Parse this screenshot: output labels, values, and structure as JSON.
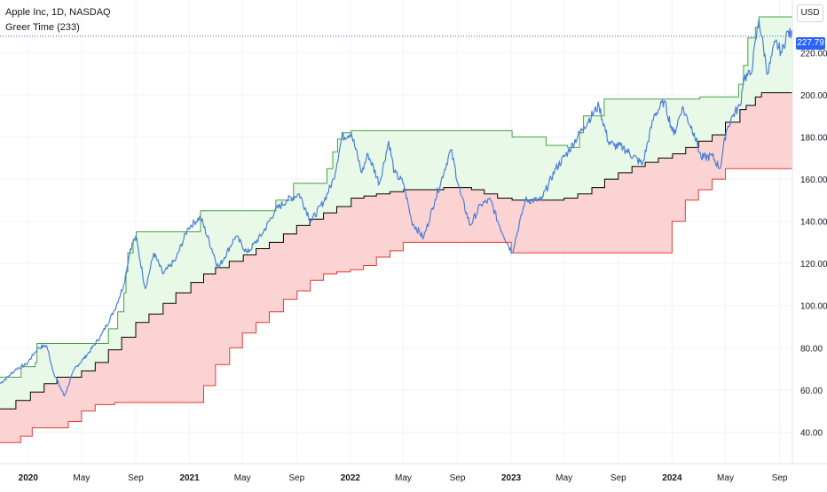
{
  "header": {
    "symbol_line": "Apple Inc, 1D, NASDAQ",
    "indicator_line": "Greer Time (233)",
    "currency": "USD",
    "last_price": "227.79"
  },
  "colors": {
    "price": "#4a7fd9",
    "upper_band": "#43a047",
    "lower_band": "#e53935",
    "mid_line": "#000000",
    "upper_fill": "#e9f9e7",
    "lower_fill": "#fcd3d3",
    "last_price_bg": "#2962ff"
  },
  "chart_data": {
    "type": "line",
    "title": "Apple Inc, 1D, NASDAQ",
    "indicator": "Greer Time (233)",
    "xlabel": "",
    "ylabel": "",
    "ylim": [
      25,
      245
    ],
    "xlim": [
      "2019-10-29",
      "2024-09-30"
    ],
    "y_ticks": [
      "40.00",
      "60.00",
      "80.00",
      "100.00",
      "120.00",
      "140.00",
      "160.00",
      "180.00",
      "200.00",
      "220.00"
    ],
    "x_ticks": [
      {
        "date": "2020-01-01",
        "label": "2020",
        "bold": true
      },
      {
        "date": "2020-05-01",
        "label": "May",
        "bold": false
      },
      {
        "date": "2020-09-01",
        "label": "Sep",
        "bold": false
      },
      {
        "date": "2021-01-01",
        "label": "2021",
        "bold": true
      },
      {
        "date": "2021-05-01",
        "label": "May",
        "bold": false
      },
      {
        "date": "2021-09-01",
        "label": "Sep",
        "bold": false
      },
      {
        "date": "2022-01-01",
        "label": "2022",
        "bold": true
      },
      {
        "date": "2022-05-01",
        "label": "May",
        "bold": false
      },
      {
        "date": "2022-09-01",
        "label": "Sep",
        "bold": false
      },
      {
        "date": "2023-01-01",
        "label": "2023",
        "bold": true
      },
      {
        "date": "2023-05-01",
        "label": "May",
        "bold": false
      },
      {
        "date": "2023-09-01",
        "label": "Sep",
        "bold": false
      },
      {
        "date": "2024-01-01",
        "label": "2024",
        "bold": true
      },
      {
        "date": "2024-05-01",
        "label": "May",
        "bold": false
      },
      {
        "date": "2024-09-01",
        "label": "Sep",
        "bold": false
      }
    ],
    "last_price": 227.79,
    "grid": true,
    "series": [
      {
        "role": "price",
        "x": [
          "2019-10-29",
          "2019-11-15",
          "2019-12-05",
          "2019-12-27",
          "2020-01-24",
          "2020-02-12",
          "2020-02-28",
          "2020-03-23",
          "2020-04-15",
          "2020-05-15",
          "2020-06-15",
          "2020-07-15",
          "2020-08-05",
          "2020-08-20",
          "2020-09-01",
          "2020-09-23",
          "2020-10-12",
          "2020-11-02",
          "2020-12-01",
          "2020-12-29",
          "2021-01-26",
          "2021-03-08",
          "2021-04-16",
          "2021-05-12",
          "2021-06-15",
          "2021-07-14",
          "2021-08-10",
          "2021-09-07",
          "2021-10-04",
          "2021-11-03",
          "2021-11-24",
          "2021-12-13",
          "2022-01-03",
          "2022-01-27",
          "2022-02-10",
          "2022-03-08",
          "2022-03-29",
          "2022-04-11",
          "2022-05-02",
          "2022-05-20",
          "2022-06-16",
          "2022-07-12",
          "2022-08-17",
          "2022-09-08",
          "2022-09-30",
          "2022-10-24",
          "2022-11-15",
          "2022-12-05",
          "2023-01-03",
          "2023-02-02",
          "2023-03-10",
          "2023-04-12",
          "2023-05-10",
          "2023-06-15",
          "2023-07-19",
          "2023-08-09",
          "2023-08-22",
          "2023-09-12",
          "2023-10-26",
          "2023-11-21",
          "2023-12-14",
          "2024-01-05",
          "2024-01-24",
          "2024-02-20",
          "2024-03-07",
          "2024-04-01",
          "2024-04-19",
          "2024-05-03",
          "2024-05-17",
          "2024-06-04",
          "2024-06-11",
          "2024-06-28",
          "2024-07-16",
          "2024-08-05",
          "2024-08-22",
          "2024-09-06",
          "2024-09-19",
          "2024-09-30"
        ],
        "values": [
          63,
          66,
          70,
          72,
          80,
          81,
          68,
          57,
          70,
          77,
          86,
          98,
          110,
          127,
          133,
          108,
          125,
          115,
          122,
          137,
          142,
          118,
          133,
          125,
          134,
          145,
          150,
          153,
          140,
          150,
          160,
          180,
          182,
          163,
          172,
          158,
          178,
          163,
          158,
          140,
          132,
          150,
          174,
          153,
          138,
          148,
          150,
          138,
          125,
          150,
          150,
          165,
          173,
          185,
          195,
          178,
          176,
          175,
          167,
          190,
          197,
          181,
          194,
          182,
          170,
          171,
          165,
          183,
          190,
          195,
          208,
          210,
          236,
          210,
          225,
          220,
          230,
          227.79
        ]
      },
      {
        "role": "upper_band",
        "x": [
          "2019-10-29",
          "2019-12-16",
          "2020-01-17",
          "2020-01-21",
          "2020-06-09",
          "2020-07-01",
          "2020-07-22",
          "2020-08-05",
          "2020-08-10",
          "2020-08-14",
          "2020-08-26",
          "2020-09-02",
          "2021-01-26",
          "2021-07-16",
          "2021-08-25",
          "2021-11-09",
          "2021-11-22",
          "2021-12-03",
          "2021-12-13",
          "2022-01-03",
          "2023-01-03",
          "2023-03-21",
          "2023-05-09",
          "2023-06-05",
          "2023-06-14",
          "2023-07-31",
          "2024-03-04",
          "2024-05-31",
          "2024-06-11",
          "2024-06-21",
          "2024-07-08",
          "2024-07-16",
          "2024-09-30"
        ],
        "values": [
          66,
          71,
          73,
          82,
          82,
          89,
          97,
          106,
          116,
          125,
          131,
          135,
          145,
          150,
          158,
          165,
          173,
          179,
          182,
          183,
          180,
          176,
          175,
          182,
          190,
          198,
          199,
          205,
          214,
          227,
          232,
          237,
          237
        ]
      },
      {
        "role": "mid_line",
        "x": [
          "2019-10-29",
          "2019-12-04",
          "2020-01-06",
          "2020-02-06",
          "2020-03-06",
          "2020-05-01",
          "2020-06-01",
          "2020-07-01",
          "2020-07-31",
          "2020-09-01",
          "2020-10-01",
          "2020-11-02",
          "2020-12-01",
          "2021-01-04",
          "2021-02-02",
          "2021-03-01",
          "2021-04-01",
          "2021-05-03",
          "2021-06-01",
          "2021-07-01",
          "2021-08-02",
          "2021-09-01",
          "2021-10-01",
          "2021-11-01",
          "2021-12-01",
          "2022-01-03",
          "2022-02-01",
          "2022-03-01",
          "2022-04-01",
          "2022-05-02",
          "2022-06-01",
          "2022-07-01",
          "2022-08-01",
          "2022-09-01",
          "2022-10-03",
          "2022-11-01",
          "2022-12-01",
          "2023-01-03",
          "2023-02-01",
          "2023-03-01",
          "2023-04-03",
          "2023-05-01",
          "2023-06-01",
          "2023-07-03",
          "2023-08-01",
          "2023-09-01",
          "2023-10-02",
          "2023-11-01",
          "2023-12-01",
          "2024-01-02",
          "2024-02-01",
          "2024-03-01",
          "2024-04-01",
          "2024-05-01",
          "2024-06-03",
          "2024-06-17",
          "2024-07-08",
          "2024-07-22",
          "2024-08-20",
          "2024-09-30"
        ],
        "values": [
          51,
          55,
          59,
          63,
          66,
          69,
          73,
          79,
          85,
          92,
          96,
          101,
          106,
          111,
          115,
          118,
          121,
          124,
          127,
          130,
          134,
          138,
          141,
          144,
          147,
          151,
          152,
          153,
          154,
          155,
          155,
          155,
          156,
          156,
          155,
          153,
          151,
          150,
          150,
          150,
          150,
          151,
          153,
          156,
          160,
          163,
          166,
          168,
          170,
          172,
          175,
          178,
          181,
          187,
          193,
          195,
          199,
          201,
          201,
          201
        ]
      },
      {
        "role": "lower_band",
        "x": [
          "2019-10-29",
          "2019-12-15",
          "2020-01-10",
          "2020-04-01",
          "2020-05-01",
          "2020-06-01",
          "2020-07-15",
          "2020-09-01",
          "2020-09-30",
          "2020-10-31",
          "2020-12-01",
          "2021-01-02",
          "2021-02-02",
          "2021-03-01",
          "2021-04-02",
          "2021-05-01",
          "2021-06-01",
          "2021-07-01",
          "2021-08-02",
          "2021-09-02",
          "2021-10-02",
          "2021-11-01",
          "2021-12-01",
          "2022-01-01",
          "2022-01-31",
          "2022-03-01",
          "2022-04-01",
          "2022-05-01",
          "2022-06-01",
          "2022-07-01",
          "2022-08-01",
          "2022-09-01",
          "2022-10-01",
          "2022-11-01",
          "2022-12-01",
          "2023-01-01",
          "2023-02-01",
          "2023-03-01",
          "2023-04-01",
          "2023-05-01",
          "2023-06-01",
          "2023-07-01",
          "2023-08-01",
          "2023-09-01",
          "2023-10-01",
          "2023-11-01",
          "2023-12-01",
          "2024-01-01",
          "2024-01-31",
          "2024-03-01",
          "2024-04-01",
          "2024-05-01",
          "2024-06-01",
          "2024-07-01",
          "2024-08-01",
          "2024-09-30"
        ],
        "values": [
          35,
          38,
          42,
          45,
          50,
          53,
          54,
          54,
          54,
          54,
          54,
          54,
          62,
          72,
          80,
          87,
          92,
          97,
          103,
          107,
          112,
          115,
          116,
          117,
          119,
          123,
          126,
          130,
          130,
          130,
          130,
          130,
          130,
          130,
          130,
          125,
          125,
          125,
          125,
          125,
          125,
          125,
          125,
          125,
          125,
          125,
          125,
          140,
          150,
          155,
          160,
          165,
          165,
          165,
          165,
          165
        ]
      }
    ]
  }
}
